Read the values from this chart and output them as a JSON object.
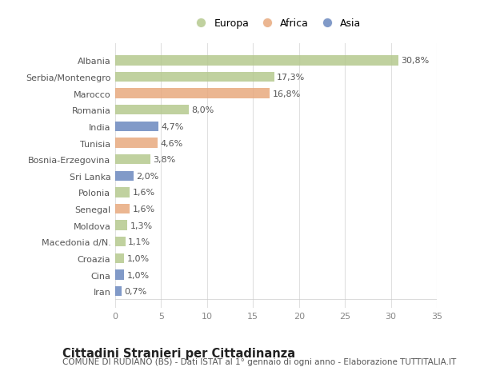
{
  "countries": [
    "Albania",
    "Serbia/Montenegro",
    "Marocco",
    "Romania",
    "India",
    "Tunisia",
    "Bosnia-Erzegovina",
    "Sri Lanka",
    "Polonia",
    "Senegal",
    "Moldova",
    "Macedonia d/N.",
    "Croazia",
    "Cina",
    "Iran"
  ],
  "values": [
    30.8,
    17.3,
    16.8,
    8.0,
    4.7,
    4.6,
    3.8,
    2.0,
    1.6,
    1.6,
    1.3,
    1.1,
    1.0,
    1.0,
    0.7
  ],
  "labels": [
    "30,8%",
    "17,3%",
    "16,8%",
    "8,0%",
    "4,7%",
    "4,6%",
    "3,8%",
    "2,0%",
    "1,6%",
    "1,6%",
    "1,3%",
    "1,1%",
    "1,0%",
    "1,0%",
    "0,7%"
  ],
  "categories": [
    "Europa",
    "Africa",
    "Asia"
  ],
  "continent": [
    "Europa",
    "Europa",
    "Africa",
    "Europa",
    "Asia",
    "Africa",
    "Europa",
    "Asia",
    "Europa",
    "Africa",
    "Europa",
    "Europa",
    "Europa",
    "Asia",
    "Asia"
  ],
  "colors": {
    "Europa": "#b5c98e",
    "Africa": "#e8a97e",
    "Asia": "#6b88bf"
  },
  "bg_color": "#ffffff",
  "plot_bg_color": "#ffffff",
  "bar_height": 0.6,
  "xlim": [
    0,
    35
  ],
  "xticks": [
    0,
    5,
    10,
    15,
    20,
    25,
    30,
    35
  ],
  "title": "Cittadini Stranieri per Cittadinanza",
  "subtitle": "COMUNE DI RUDIANO (BS) - Dati ISTAT al 1° gennaio di ogni anno - Elaborazione TUTTITALIA.IT",
  "label_fontsize": 8,
  "tick_fontsize": 8,
  "title_fontsize": 10.5,
  "subtitle_fontsize": 7.5
}
